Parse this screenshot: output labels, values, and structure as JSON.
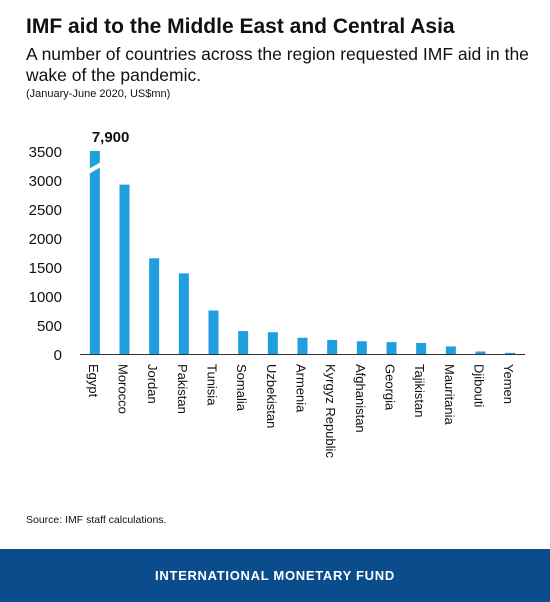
{
  "header": {
    "title": "IMF aid to the Middle East and Central Asia",
    "subtitle": "A number of countries across the region requested IMF aid in the wake of the pandemic.",
    "units": "(January-June 2020, US$mn)"
  },
  "chart_data": {
    "type": "bar",
    "categories": [
      "Egypt",
      "Morocco",
      "Jordan",
      "Pakistan",
      "Tunisia",
      "Somalia",
      "Uzbekistan",
      "Armenia",
      "Kyrgyz Republic",
      "Afghanistan",
      "Georgia",
      "Tajikistan",
      "Mauritania",
      "Djibouti",
      "Yemen"
    ],
    "values": [
      7900,
      2920,
      1650,
      1390,
      750,
      395,
      375,
      280,
      242,
      220,
      205,
      190,
      130,
      43,
      20
    ],
    "ylim": [
      0,
      3500
    ],
    "yticks": [
      0,
      500,
      1000,
      1500,
      2000,
      2500,
      3000,
      3500
    ],
    "ytick_labels": [
      "0",
      "500",
      "1000",
      "1500",
      "2000",
      "2500",
      "3000",
      "3500"
    ],
    "axis_break": true,
    "data_labels": [
      {
        "category": "Egypt",
        "label": "7,900"
      }
    ],
    "bar_color": "#1f9ee0",
    "grid": false
  },
  "source": "Source: IMF staff calculations.",
  "footer": {
    "org": "INTERNATIONAL MONETARY FUND",
    "color": "#0b4d8c"
  }
}
